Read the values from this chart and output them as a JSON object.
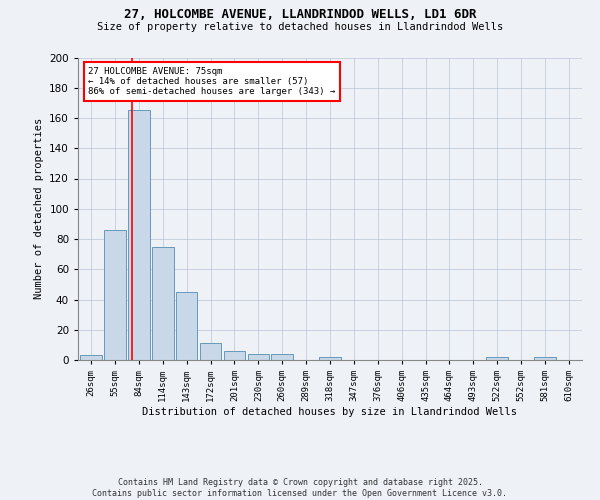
{
  "title": "27, HOLCOMBE AVENUE, LLANDRINDOD WELLS, LD1 6DR",
  "subtitle": "Size of property relative to detached houses in Llandrindod Wells",
  "xlabel": "Distribution of detached houses by size in Llandrindod Wells",
  "ylabel": "Number of detached properties",
  "categories": [
    "26sqm",
    "55sqm",
    "84sqm",
    "114sqm",
    "143sqm",
    "172sqm",
    "201sqm",
    "230sqm",
    "260sqm",
    "289sqm",
    "318sqm",
    "347sqm",
    "376sqm",
    "406sqm",
    "435sqm",
    "464sqm",
    "493sqm",
    "522sqm",
    "552sqm",
    "581sqm",
    "610sqm"
  ],
  "values": [
    3,
    86,
    165,
    75,
    45,
    11,
    6,
    4,
    4,
    0,
    2,
    0,
    0,
    0,
    0,
    0,
    0,
    2,
    0,
    2,
    0
  ],
  "bar_color": "#c8d8e8",
  "bar_edge_color": "#6699bb",
  "vline_color": "red",
  "annotation_text": "27 HOLCOMBE AVENUE: 75sqm\n← 14% of detached houses are smaller (57)\n86% of semi-detached houses are larger (343) →",
  "annotation_box_color": "white",
  "annotation_box_edge": "red",
  "footer_line1": "Contains HM Land Registry data © Crown copyright and database right 2025.",
  "footer_line2": "Contains public sector information licensed under the Open Government Licence v3.0.",
  "background_color": "#eef2f7",
  "ylim": [
    0,
    200
  ],
  "yticks": [
    0,
    20,
    40,
    60,
    80,
    100,
    120,
    140,
    160,
    180,
    200
  ]
}
